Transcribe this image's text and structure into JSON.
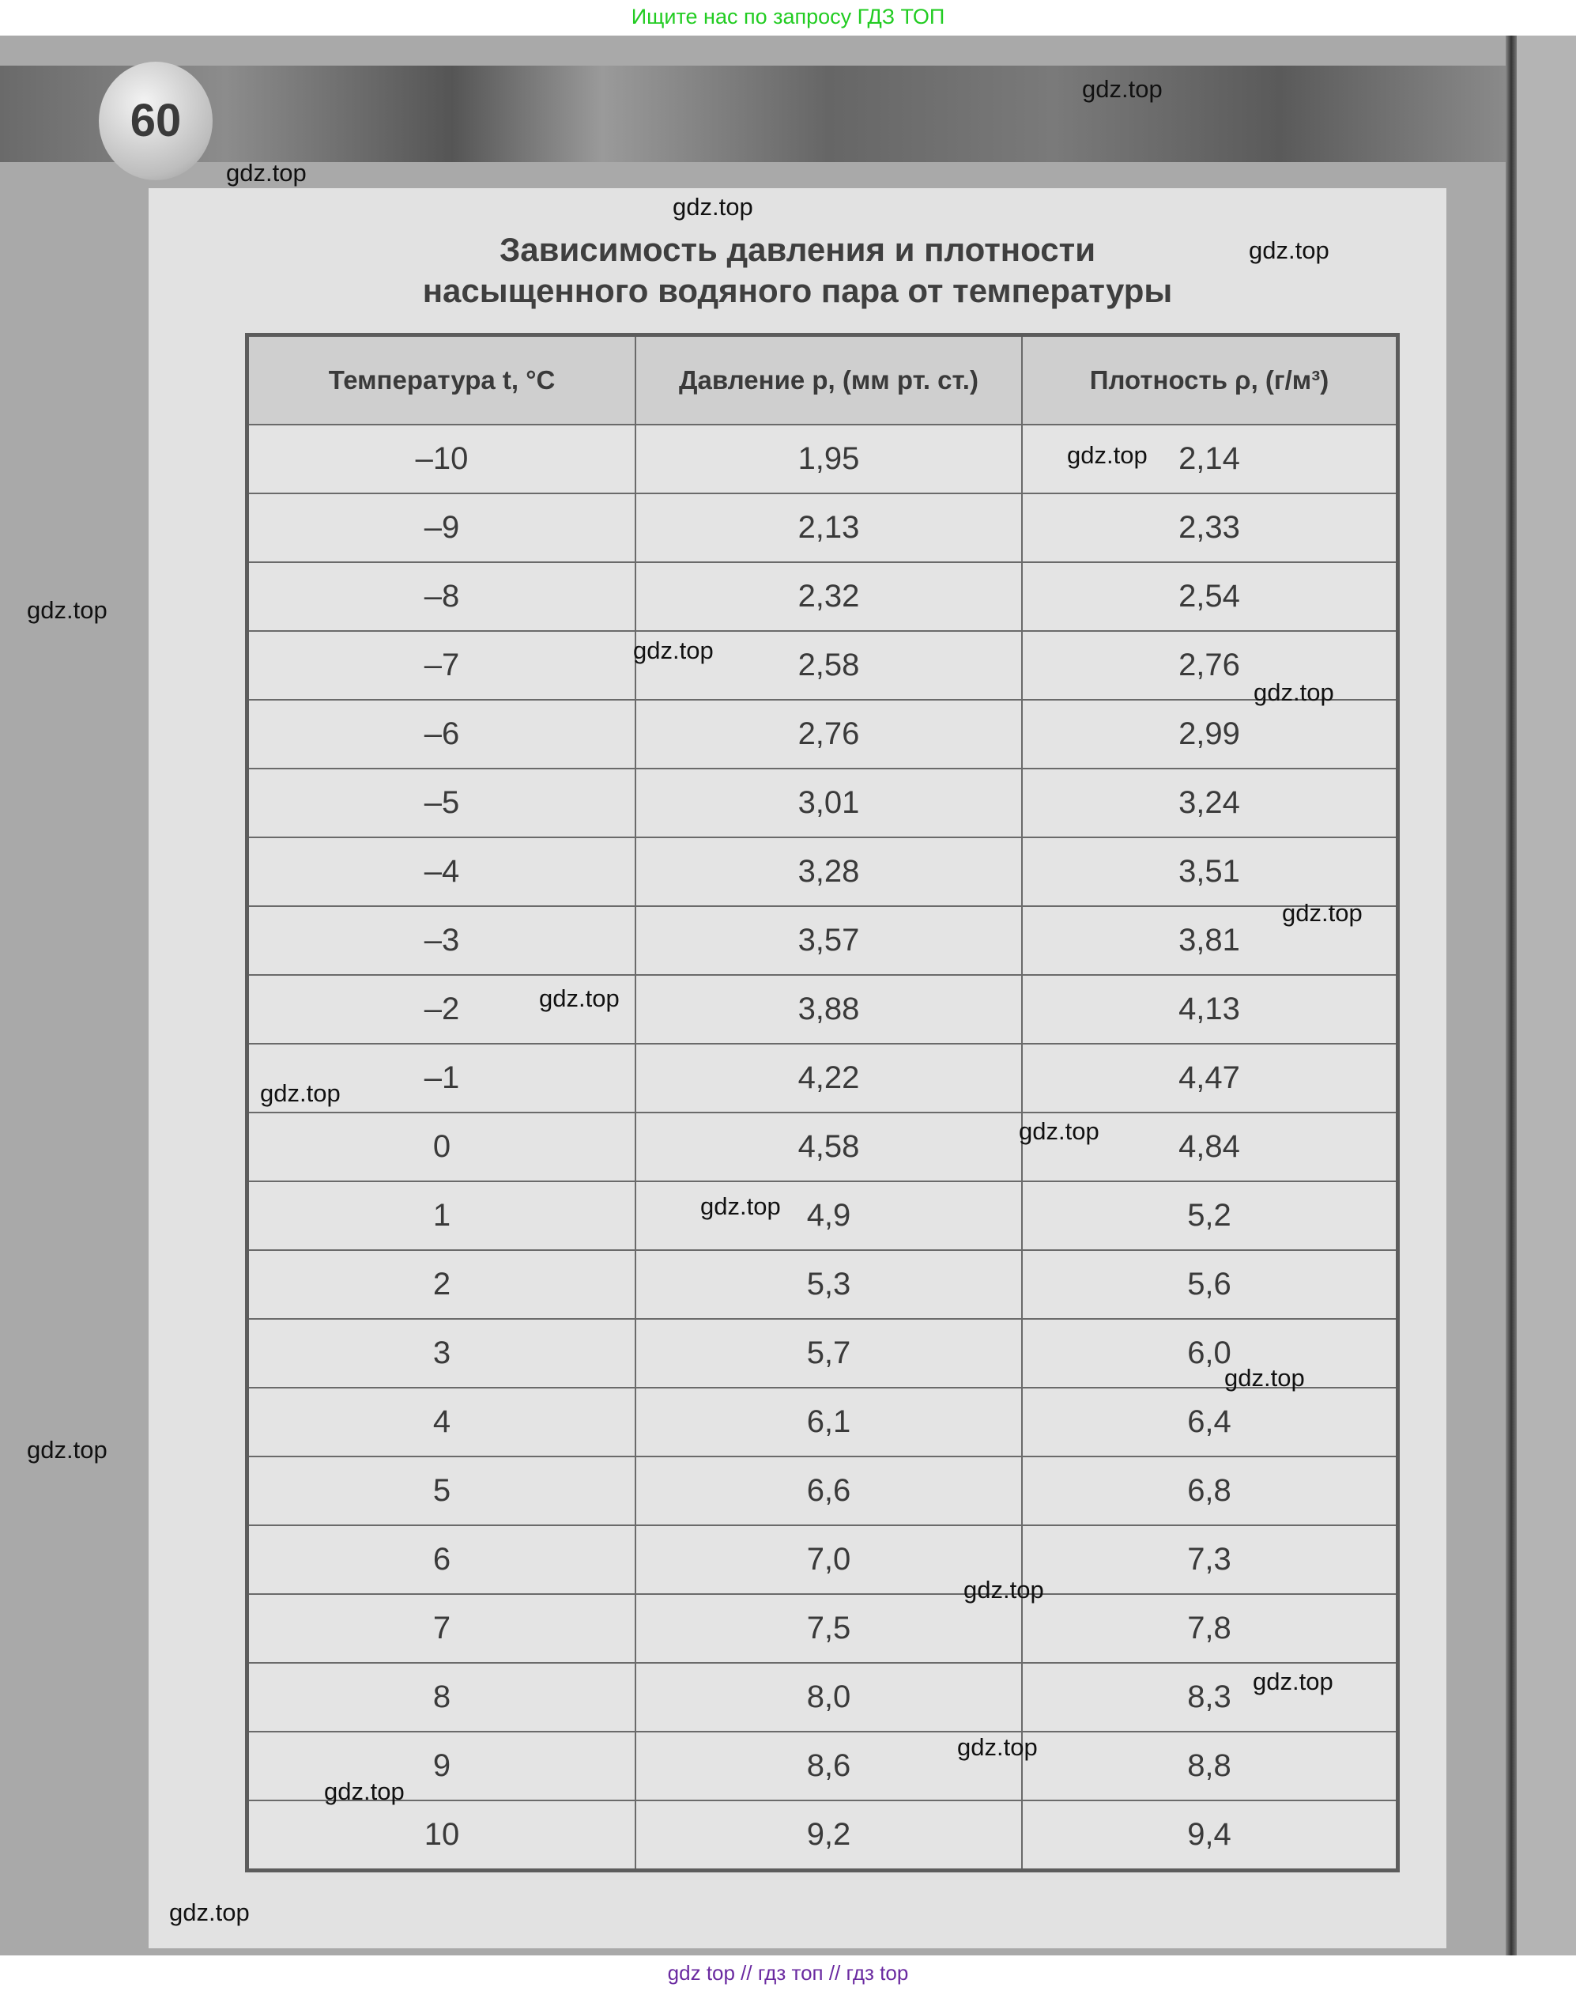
{
  "top_banner_text": "Ищите нас по запросу ГДЗ ТОП",
  "page_number": "60",
  "title_line1": "Зависимость давления и плотности",
  "title_line2": "насыщенного водяного пара от температуры",
  "table": {
    "headers": [
      "Температура t, °C",
      "Давление p, (мм рт. ст.)",
      "Плотность ρ, (г/м³)"
    ],
    "rows": [
      [
        "–10",
        "1,95",
        "2,14"
      ],
      [
        "–9",
        "2,13",
        "2,33"
      ],
      [
        "–8",
        "2,32",
        "2,54"
      ],
      [
        "–7",
        "2,58",
        "2,76"
      ],
      [
        "–6",
        "2,76",
        "2,99"
      ],
      [
        "–5",
        "3,01",
        "3,24"
      ],
      [
        "–4",
        "3,28",
        "3,51"
      ],
      [
        "–3",
        "3,57",
        "3,81"
      ],
      [
        "–2",
        "3,88",
        "4,13"
      ],
      [
        "–1",
        "4,22",
        "4,47"
      ],
      [
        "0",
        "4,58",
        "4,84"
      ],
      [
        "1",
        "4,9",
        "5,2"
      ],
      [
        "2",
        "5,3",
        "5,6"
      ],
      [
        "3",
        "5,7",
        "6,0"
      ],
      [
        "4",
        "6,1",
        "6,4"
      ],
      [
        "5",
        "6,6",
        "6,8"
      ],
      [
        "6",
        "7,0",
        "7,3"
      ],
      [
        "7",
        "7,5",
        "7,8"
      ],
      [
        "8",
        "8,0",
        "8,3"
      ],
      [
        "9",
        "8,6",
        "8,8"
      ],
      [
        "10",
        "9,2",
        "9,4"
      ]
    ]
  },
  "watermark_text": "gdz.top",
  "footer_text": "gdz top  //  гдз топ  //  гдз top"
}
